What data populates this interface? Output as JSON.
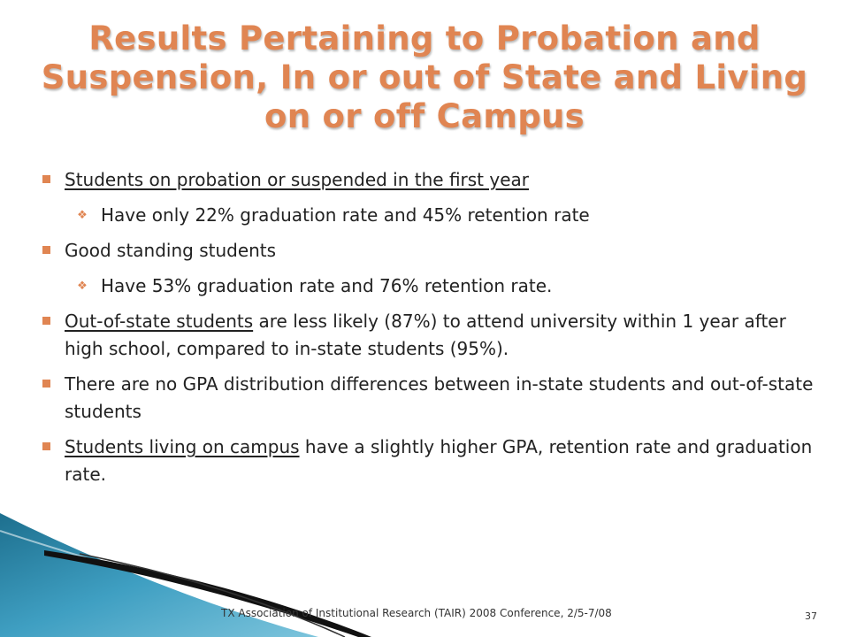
{
  "slide": {
    "title_lines": [
      "Results Pertaining to Probation and",
      "Suspension, In or out of State and Living",
      "on or off Campus"
    ],
    "bullets": [
      {
        "underlined": "Students on probation or suspended in the first year",
        "rest": ""
      },
      {
        "text": "Have only 22%  graduation rate and 45% retention rate"
      },
      {
        "text": "Good standing students"
      },
      {
        "text": "Have 53% graduation rate and 76% retention rate."
      },
      {
        "underlined": "Out-of-state students",
        "rest": " are less likely (87%) to attend university within 1  year after high school, compared to in-state students (95%)."
      },
      {
        "text": "There are no GPA distribution differences between in-state students and out-of-state students"
      },
      {
        "underlined": "Students living on campus",
        "rest": " have a slightly higher GPA, retention rate and graduation rate."
      }
    ],
    "footer": "TX Association of Institutional Research (TAIR) 2008 Conference, 2/5-7/08",
    "page_number": "37"
  },
  "colors": {
    "title": "#e08552",
    "bullet": "#e08552",
    "wave_dark": "#1d6f8e",
    "wave_light": "#7cc4dc"
  },
  "icons": {
    "level1_bullet": "square-bullet-icon",
    "level2_bullet": "diamond-bullet-icon"
  }
}
